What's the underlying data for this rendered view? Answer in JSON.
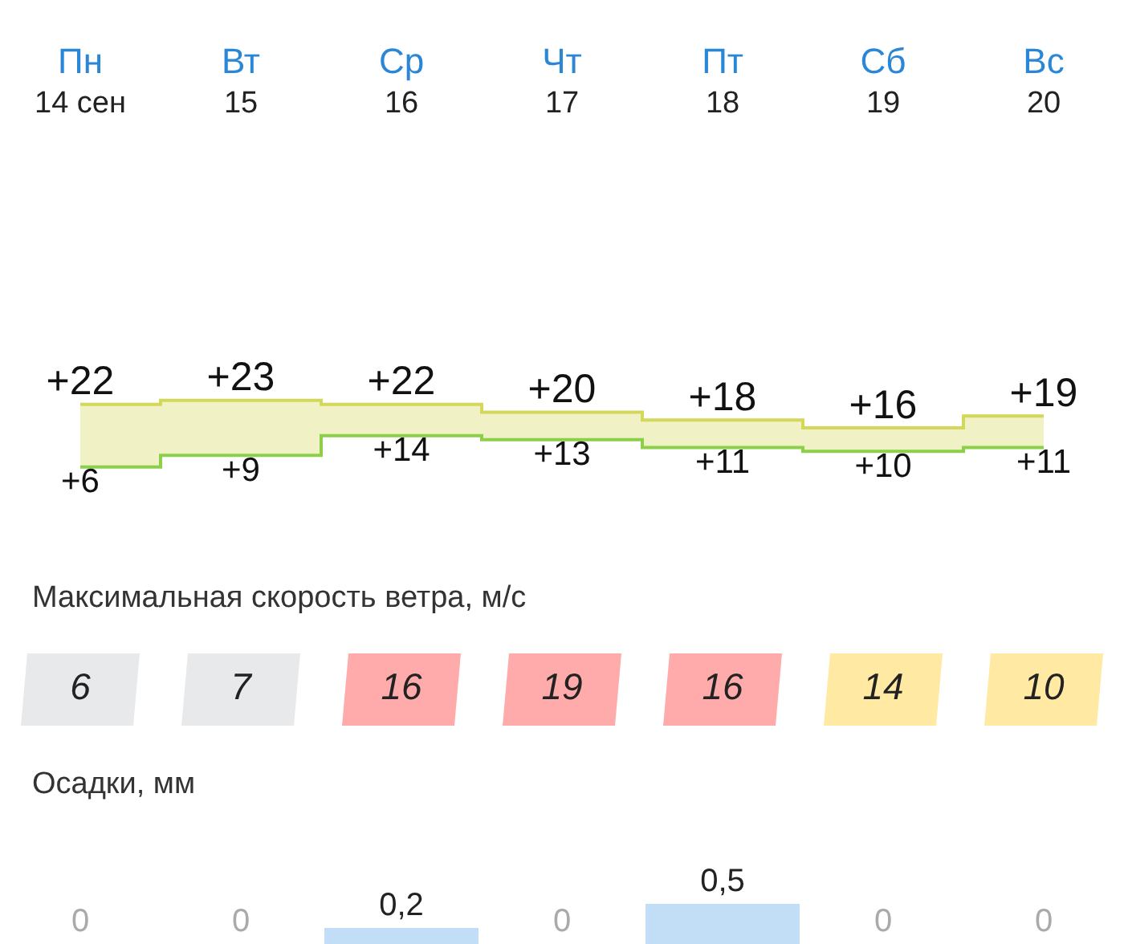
{
  "chart_data": [
    {
      "type": "step",
      "categories": [
        "Пн\n14 сен",
        "Вт\n15",
        "Ср\n16",
        "Чт\n17",
        "Пт\n18",
        "Сб\n19",
        "Вс\n20"
      ],
      "data_labels": true,
      "series": [
        {
          "color": "#8ccf48",
          "values": [
            6,
            9,
            14,
            13,
            11,
            10,
            11
          ],
          "value_labels": [
            "+6",
            "+9",
            "+14",
            "+13",
            "+11",
            "+10",
            "+11"
          ]
        },
        {
          "color": "#d4d85a",
          "values": [
            22,
            23,
            22,
            20,
            18,
            16,
            19
          ],
          "value_labels": [
            "+22",
            "+23",
            "+22",
            "+20",
            "+18",
            "+16",
            "+19"
          ],
          "lower": [
            6,
            9,
            14,
            13,
            11,
            10,
            11
          ],
          "upper": [
            22,
            23,
            22,
            20,
            18,
            16,
            19
          ]
        }
      ]
    },
    {
      "type": "other",
      "title": "Максимальная скорость ветра, м/с",
      "categories": [
        null,
        null,
        null,
        null,
        null,
        null,
        null
      ],
      "values": [
        6,
        7,
        16,
        19,
        16,
        14,
        10
      ],
      "colors": [
        "#e8e9ea",
        "#e8e9ea",
        "#ffabab",
        "#ffabab",
        "#ffabab",
        "#ffe9a3",
        "#ffe9a3"
      ],
      "data_labels": true
    },
    {
      "type": "bar",
      "title": "Осадки, мм",
      "categories": [
        null,
        null,
        null,
        null,
        null,
        null,
        null
      ],
      "values": [
        0,
        0,
        0.2,
        0,
        0.5,
        0,
        0
      ],
      "value_labels": [
        "0",
        "0",
        "0,2",
        "0",
        "0,5",
        "0",
        "0"
      ],
      "color": "#c2def7"
    }
  ]
}
